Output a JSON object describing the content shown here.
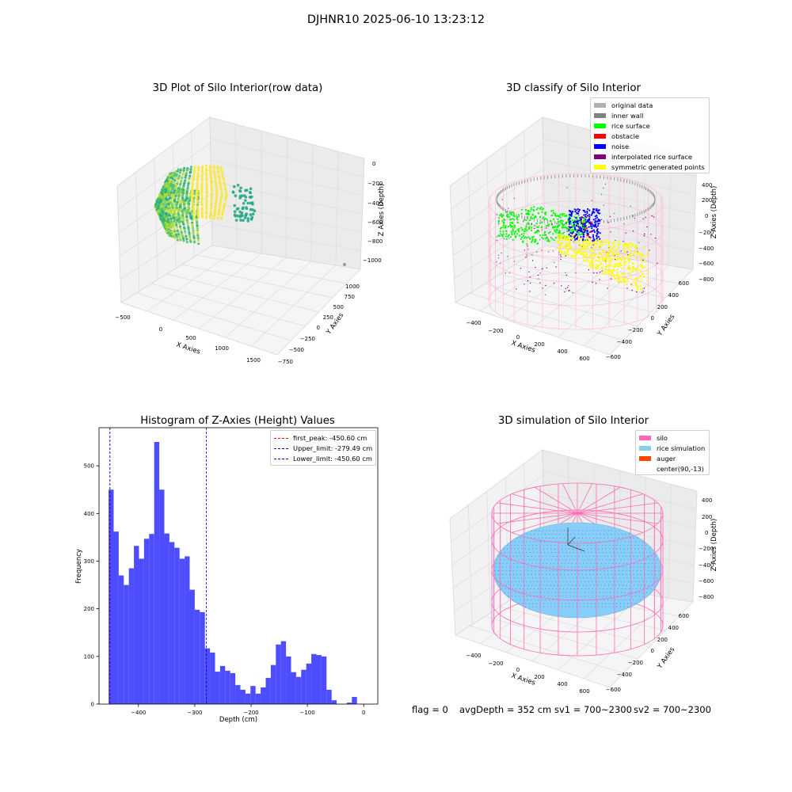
{
  "suptitle": "DJHNR10 2025-06-10 13:23:12",
  "colors": {
    "histogram_bar": "#4d4dff",
    "peak_line": "#ff0000",
    "upper_line": "#0000cc",
    "lower_line": "#0000cc",
    "silo_mesh": "#ff69b4",
    "rice_sim": "#87cefa"
  },
  "panel_raw": {
    "title": "3D Plot of Silo Interior(row data)",
    "xlabel": "X Axies",
    "ylabel": "Y Axies",
    "zlabel": "Z Axies (Depth)",
    "xticks": [
      "−500",
      "0",
      "500",
      "1000",
      "1500"
    ],
    "yticks": [
      "1000",
      "750",
      "500",
      "250",
      "0",
      "−250",
      "−500",
      "−750"
    ],
    "zticks": [
      "0",
      "−200",
      "−400",
      "−600",
      "−800",
      "−1000"
    ]
  },
  "panel_classify": {
    "title": "3D classify of Silo Interior",
    "xlabel": "X Axies",
    "ylabel": "Y Axies",
    "zlabel": "Z Axies (Depth)",
    "xticks": [
      "−400",
      "−200",
      "0",
      "200",
      "400",
      "600"
    ],
    "yticks": [
      "600",
      "400",
      "200",
      "0",
      "−200",
      "−400",
      "−600"
    ],
    "zticks": [
      "400",
      "200",
      "0",
      "−200",
      "−400",
      "−600",
      "−800"
    ],
    "legend": [
      {
        "label": "original data",
        "color": "#b0b0b0"
      },
      {
        "label": "inner wall",
        "color": "#808080"
      },
      {
        "label": "rice surface",
        "color": "#00ff00"
      },
      {
        "label": "obstacle",
        "color": "#ff0000"
      },
      {
        "label": "noise",
        "color": "#0000ff"
      },
      {
        "label": "interpolated rice surface",
        "color": "#800080"
      },
      {
        "label": "symmetric generated points",
        "color": "#ffff00"
      }
    ]
  },
  "panel_sim": {
    "title": "3D simulation of Silo Interior",
    "xlabel": "X Axies",
    "ylabel": "Y Axies",
    "zlabel": "Z Axies (Depth)",
    "xticks": [
      "−400",
      "−200",
      "0",
      "200",
      "400",
      "600"
    ],
    "yticks": [
      "600",
      "400",
      "200",
      "0",
      "−200",
      "−400",
      "−600"
    ],
    "zticks": [
      "400",
      "200",
      "0",
      "−200",
      "−400",
      "−600",
      "−800"
    ],
    "legend": [
      {
        "label": "silo",
        "color": "#ff69b4"
      },
      {
        "label": "rice simulation",
        "color": "#87ceeb"
      },
      {
        "label": "auger",
        "color": "#ff4500"
      },
      {
        "label": "center(90,-13)",
        "color": ""
      }
    ]
  },
  "status": {
    "flag": "flag = 0",
    "avg": "avgDepth = 352 cm",
    "sv1": "sv1 = 700~2300",
    "sv2": "sv2 = 700~2300"
  },
  "chart_data": {
    "type": "bar",
    "title": "Histogram of Z-Axies (Height) Values",
    "xlabel": "Depth (cm)",
    "ylabel": "Frequency",
    "xlim": [
      -470,
      25
    ],
    "ylim": [
      0,
      580
    ],
    "xticks": [
      -400,
      -300,
      -200,
      -100,
      0
    ],
    "yticks": [
      0,
      100,
      200,
      300,
      400,
      500
    ],
    "bin_start": -453,
    "bin_width": 9,
    "values": [
      450,
      362,
      270,
      250,
      285,
      332,
      305,
      347,
      357,
      550,
      450,
      358,
      340,
      328,
      305,
      310,
      240,
      198,
      193,
      117,
      108,
      68,
      80,
      70,
      65,
      40,
      30,
      22,
      38,
      22,
      35,
      55,
      82,
      125,
      132,
      100,
      67,
      57,
      72,
      85,
      105,
      103,
      100,
      30,
      8,
      0,
      0,
      3,
      15
    ],
    "vlines": [
      {
        "x": -450.6,
        "label": "first_peak: -450.60 cm",
        "style": "peak"
      },
      {
        "x": -279.49,
        "label": "Upper_limit: -279.49 cm",
        "style": "upper"
      },
      {
        "x": -450.6,
        "label": "Lower_limit: -450.60 cm",
        "style": "lower"
      }
    ]
  }
}
